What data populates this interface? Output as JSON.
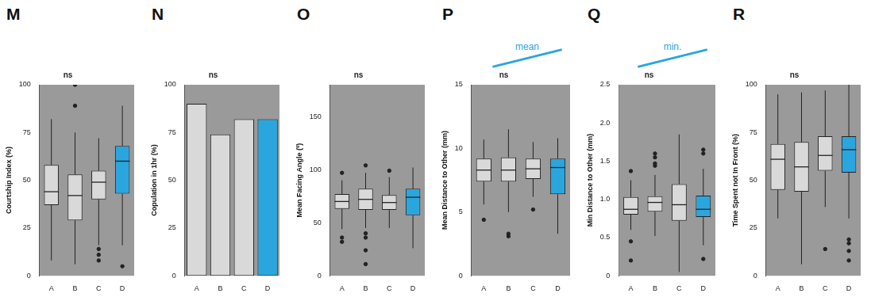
{
  "chart_data": [
    {
      "type": "boxplot",
      "title": "M",
      "subtitle": "ns",
      "y_label": "Courtship Index (%)",
      "categories": [
        "A",
        "B",
        "C",
        "D"
      ],
      "colors": [
        "#d9d9d9",
        "#d9d9d9",
        "#d9d9d9",
        "#2aa6de"
      ],
      "boxes": [
        {
          "min": 8,
          "q1": 37,
          "median": 44,
          "q3": 58,
          "max": 82,
          "outliers": []
        },
        {
          "min": 6,
          "q1": 29,
          "median": 42,
          "q3": 53,
          "max": 75,
          "outliers": [
            89,
            100
          ]
        },
        {
          "min": 16,
          "q1": 40,
          "median": 49,
          "q3": 55,
          "max": 72,
          "outliers": [
            14,
            11,
            8
          ]
        },
        {
          "min": 16,
          "q1": 43,
          "median": 60,
          "q3": 68,
          "max": 89,
          "outliers": [
            5
          ]
        }
      ],
      "ylim": [
        0,
        100
      ],
      "yticks": [
        0,
        25,
        50,
        75,
        100
      ],
      "grid": false
    },
    {
      "type": "bar",
      "title": "N",
      "subtitle": "ns",
      "y_label": "Copulation in 1hr (%)",
      "categories": [
        "A",
        "B",
        "C",
        "D"
      ],
      "values": [
        90,
        74,
        82,
        82
      ],
      "colors": [
        "#d9d9d9",
        "#d9d9d9",
        "#d9d9d9",
        "#2aa6de"
      ],
      "ylim": [
        0,
        100
      ],
      "yticks": [
        0,
        25,
        50,
        75,
        100
      ],
      "grid": false
    },
    {
      "type": "boxplot",
      "title": "O",
      "subtitle": "ns",
      "y_label": "Mean Facing Angle (º)",
      "categories": [
        "A",
        "B",
        "C",
        "D"
      ],
      "colors": [
        "#d9d9d9",
        "#d9d9d9",
        "#d9d9d9",
        "#2aa6de"
      ],
      "boxes": [
        {
          "min": 44,
          "q1": 63,
          "median": 70,
          "q3": 77,
          "max": 90,
          "outliers": [
            97,
            36,
            32
          ]
        },
        {
          "min": 45,
          "q1": 62,
          "median": 72,
          "q3": 82,
          "max": 97,
          "outliers": [
            104,
            40,
            36,
            24,
            11
          ]
        },
        {
          "min": 45,
          "q1": 62,
          "median": 69,
          "q3": 76,
          "max": 93,
          "outliers": [
            99
          ]
        },
        {
          "min": 26,
          "q1": 57,
          "median": 74,
          "q3": 82,
          "max": 102,
          "outliers": []
        }
      ],
      "ylim": [
        0,
        180
      ],
      "yticks": [
        0,
        50,
        100,
        150
      ],
      "grid": false
    },
    {
      "type": "boxplot",
      "title": "P",
      "subtitle": "ns",
      "annotation": "mean",
      "y_label": "Mean Distance to Other (mm)",
      "categories": [
        "A",
        "B",
        "C",
        "D"
      ],
      "colors": [
        "#d9d9d9",
        "#d9d9d9",
        "#d9d9d9",
        "#2aa6de"
      ],
      "boxes": [
        {
          "min": 5.6,
          "q1": 7.4,
          "median": 8.3,
          "q3": 9.2,
          "max": 10.7,
          "outliers": [
            4.4
          ]
        },
        {
          "min": 5.0,
          "q1": 7.4,
          "median": 8.3,
          "q3": 9.3,
          "max": 11.5,
          "outliers": [
            3.3,
            3.1
          ]
        },
        {
          "min": 6.2,
          "q1": 7.6,
          "median": 8.4,
          "q3": 9.2,
          "max": 10.5,
          "outliers": [
            5.2
          ]
        },
        {
          "min": 3.3,
          "q1": 6.4,
          "median": 8.5,
          "q3": 9.2,
          "max": 10.8,
          "outliers": []
        }
      ],
      "ylim": [
        0,
        15
      ],
      "yticks": [
        0,
        5,
        10,
        15
      ],
      "grid": false
    },
    {
      "type": "boxplot",
      "title": "Q",
      "subtitle": "ns",
      "annotation": "min.",
      "y_label": "Min Distance to Other (mm)",
      "categories": [
        "A",
        "B",
        "C",
        "D"
      ],
      "colors": [
        "#d9d9d9",
        "#d9d9d9",
        "#d9d9d9",
        "#2aa6de"
      ],
      "boxes": [
        {
          "min": 0.6,
          "q1": 0.8,
          "median": 0.87,
          "q3": 1.03,
          "max": 1.25,
          "outliers": [
            1.37,
            0.45,
            0.2
          ]
        },
        {
          "min": 0.52,
          "q1": 0.84,
          "median": 0.96,
          "q3": 1.04,
          "max": 1.32,
          "outliers": [
            1.6,
            1.55,
            1.47,
            1.44
          ]
        },
        {
          "min": 0.05,
          "q1": 0.72,
          "median": 0.93,
          "q3": 1.2,
          "max": 1.85,
          "outliers": []
        },
        {
          "min": 0.4,
          "q1": 0.77,
          "median": 0.87,
          "q3": 1.05,
          "max": 1.4,
          "outliers": [
            1.65,
            1.6,
            0.22
          ]
        }
      ],
      "ylim": [
        0,
        2.5
      ],
      "yticks": [
        0,
        0.5,
        {
          "value": 1,
          "label": "1.0"
        },
        1.5,
        {
          "value": 2,
          "label": "2.0"
        },
        2.5
      ],
      "grid": false
    },
    {
      "type": "boxplot",
      "title": "R",
      "subtitle": "ns",
      "y_label": "Time Spent not In Front (%)",
      "categories": [
        "A",
        "B",
        "C",
        "D"
      ],
      "colors": [
        "#d9d9d9",
        "#d9d9d9",
        "#d9d9d9",
        "#2aa6de"
      ],
      "boxes": [
        {
          "min": 30,
          "q1": 45,
          "median": 61,
          "q3": 69,
          "max": 95,
          "outliers": []
        },
        {
          "min": 6,
          "q1": 44,
          "median": 57,
          "q3": 70,
          "max": 96,
          "outliers": []
        },
        {
          "min": 36,
          "q1": 55,
          "median": 63,
          "q3": 73,
          "max": 97,
          "outliers": [
            14
          ]
        },
        {
          "min": 30,
          "q1": 54,
          "median": 66,
          "q3": 73,
          "max": 100,
          "outliers": [
            19,
            17,
            13,
            8
          ]
        }
      ],
      "ylim": [
        0,
        100
      ],
      "yticks": [
        0,
        25,
        50,
        75,
        100
      ],
      "grid": false
    }
  ]
}
